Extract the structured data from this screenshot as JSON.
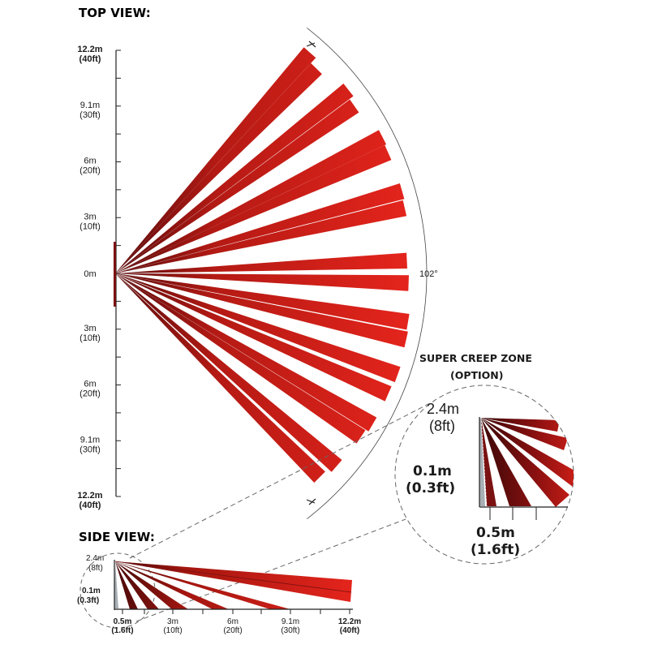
{
  "top_view": {
    "title": "TOP VIEW:",
    "axis_ticks": [
      {
        "m": "12.2m",
        "ft": "(40ft)",
        "bold": true
      },
      {
        "m": "9.1m",
        "ft": "(30ft)",
        "bold": false
      },
      {
        "m": "6m",
        "ft": "(20ft)",
        "bold": false
      },
      {
        "m": "3m",
        "ft": "(10ft)",
        "bold": false
      },
      {
        "m": "0m",
        "ft": "",
        "bold": false
      },
      {
        "m": "3m",
        "ft": "(10ft)",
        "bold": false
      },
      {
        "m": "6m",
        "ft": "(20ft)",
        "bold": false
      },
      {
        "m": "9.1m",
        "ft": "(30ft)",
        "bold": false
      },
      {
        "m": "12.2m",
        "ft": "(40ft)",
        "bold": true
      }
    ],
    "angle_label": "102°"
  },
  "side_view": {
    "title": "SIDE VIEW:",
    "height_label": "2.4m",
    "height_label_ft": "(8ft)",
    "near_label": "0.1m",
    "near_label_ft": "(0.3ft)",
    "x_ticks": [
      {
        "m": "0.5m",
        "ft": "(1.6ft)",
        "bold": true
      },
      {
        "m": "3m",
        "ft": "(10ft)",
        "bold": false
      },
      {
        "m": "6m",
        "ft": "(20ft)",
        "bold": false
      },
      {
        "m": "9.1m",
        "ft": "(30ft)",
        "bold": false
      },
      {
        "m": "12.2m",
        "ft": "(40ft)",
        "bold": true
      }
    ]
  },
  "creep_zone": {
    "title_line1": "SUPER CREEP ZONE",
    "title_line2": "(OPTION)",
    "height_label": "2.4m",
    "height_label_ft": "(8ft)",
    "near_label": "0.1m",
    "near_label_ft": "(0.3ft)",
    "distance_label": "0.5m",
    "distance_label_ft": "(1.6ft)"
  },
  "colors": {
    "beam": "#e3241c",
    "beam_dark": "#8a1010",
    "beam_gradient_start": "#5a0c0c",
    "grey_zone": "#a9b0b5",
    "line": "#222222"
  }
}
